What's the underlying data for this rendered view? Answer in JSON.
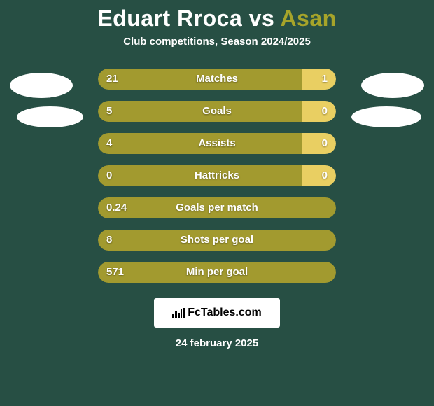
{
  "colors": {
    "background": "#274f44",
    "title_white": "#ffffff",
    "title_accent": "#a6a42a",
    "subtitle": "#ffffff",
    "bar_left": "#a29a2f",
    "bar_right": "#e9cf62",
    "bar_track": "#274f44",
    "bar_text": "#ffffff",
    "avatar_fill": "#ffffff",
    "logo_bg": "#ffffff",
    "logo_text": "#000000",
    "logo_bar": "#000000",
    "date_text": "#ffffff"
  },
  "title": {
    "player1": "Eduart Rroca",
    "vs": "vs",
    "player2": "Asan"
  },
  "subtitle": "Club competitions, Season 2024/2025",
  "stats": [
    {
      "label": "Matches",
      "left_val": "21",
      "right_val": "1",
      "left_pct": 86,
      "right_pct": 14
    },
    {
      "label": "Goals",
      "left_val": "5",
      "right_val": "0",
      "left_pct": 86,
      "right_pct": 14
    },
    {
      "label": "Assists",
      "left_val": "4",
      "right_val": "0",
      "left_pct": 86,
      "right_pct": 14
    },
    {
      "label": "Hattricks",
      "left_val": "0",
      "right_val": "0",
      "left_pct": 86,
      "right_pct": 14
    },
    {
      "label": "Goals per match",
      "left_val": "0.24",
      "right_val": "",
      "left_pct": 100,
      "right_pct": 0
    },
    {
      "label": "Shots per goal",
      "left_val": "8",
      "right_val": "",
      "left_pct": 100,
      "right_pct": 0
    },
    {
      "label": "Min per goal",
      "left_val": "571",
      "right_val": "",
      "left_pct": 100,
      "right_pct": 0
    }
  ],
  "logo": {
    "text": "FcTables.com"
  },
  "date": "24 february 2025"
}
